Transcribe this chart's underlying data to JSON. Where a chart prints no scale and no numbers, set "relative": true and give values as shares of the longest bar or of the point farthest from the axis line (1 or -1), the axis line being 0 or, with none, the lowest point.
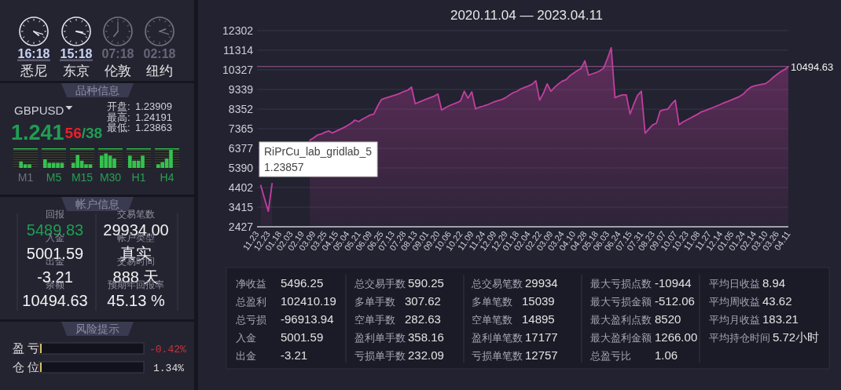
{
  "chart_data": [
    {
      "type": "other",
      "annotations": [
        "16:18",
        "悉尼",
        "15:18",
        "东京",
        "07:18",
        "伦敦",
        "02:18",
        "纽约"
      ]
    },
    {
      "type": "other",
      "title": "品种信息",
      "annotations": [
        "GBPUSD",
        "1.241",
        "56",
        "/38",
        "开盘:",
        "1.23909",
        "最高:",
        "1.24191",
        "最低:",
        "1.23863"
      ]
    },
    {
      "type": "bar",
      "relative": true,
      "categories": [
        "M1",
        "M5",
        "M15",
        "M30",
        "H1",
        "H4"
      ],
      "series": [
        {
          "color": "#34c34f",
          "values": [
            0,
            0.48,
            0.28,
            0.68,
            0.68,
            0.2
          ]
        },
        {
          "color": "#34c34f",
          "values": [
            0.36,
            0.28,
            0.72,
            0.8,
            0.4,
            0.32
          ]
        },
        {
          "color": "#34c34f",
          "values": [
            0.2,
            0.28,
            0.4,
            0.68,
            0.4,
            0.52
          ]
        },
        {
          "color": "#34c34f",
          "values": [
            0.2,
            0.28,
            0.2,
            0.52,
            0.68,
            1
          ]
        },
        {
          "color": "#34c34f",
          "values": [
            0,
            0.28,
            0.2,
            0,
            0,
            0
          ]
        }
      ]
    },
    {
      "type": "other",
      "title": "帐户信息",
      "annotations": [
        "回报",
        "5489.83",
        "交易笔数",
        "29934.00",
        "入金",
        "5001.59",
        "帐户类型",
        "真实",
        "出金",
        "-3.21",
        "交易时间",
        "888 天",
        "余额",
        "10494.63",
        "预期年回报率",
        "45.13 %"
      ]
    },
    {
      "type": "other",
      "title": "风险提示",
      "annotations": [
        "盈 亏",
        "-0.42%",
        "仓 位",
        "1.34%"
      ]
    },
    {
      "type": "area",
      "title": "2020.11.04 — 2023.04.11",
      "categories": [
        "11.23",
        null,
        null,
        "12.23",
        null,
        null,
        "01.18",
        null,
        null,
        "02.03",
        null,
        null,
        "02.19",
        null,
        null,
        "03.09",
        null,
        null,
        "03.25",
        null,
        null,
        "04.15",
        null,
        null,
        "05.04",
        null,
        null,
        "05.21",
        null,
        null,
        "06.09",
        null,
        null,
        "06.25",
        null,
        null,
        "07.13",
        null,
        null,
        "07.28",
        null,
        null,
        "08.13",
        null,
        null,
        "09.01",
        null,
        null,
        "09.20",
        null,
        null,
        "10.06",
        null,
        null,
        "10.22",
        null,
        null,
        "11.09",
        null,
        null,
        "11.24",
        null,
        null,
        "12.09",
        null,
        null,
        "12.29",
        null,
        null,
        "01.18",
        null,
        null,
        "02.04",
        null,
        null,
        "02.22",
        null,
        null,
        "03.09",
        null,
        null,
        "03.24",
        null,
        null,
        "04.10",
        null,
        null,
        "04.28",
        null,
        null,
        "05.18",
        null,
        null,
        "06.03",
        null,
        null,
        "06.24",
        null,
        null,
        "07.15",
        null,
        null,
        "07.31",
        null,
        null,
        "08.23",
        null,
        null,
        "09.07",
        null,
        null,
        "10.07",
        null,
        null,
        "10.23",
        null,
        null,
        "11.08",
        null,
        null,
        "11.27",
        null,
        null,
        "12.14",
        null,
        null,
        "01.05",
        null,
        null,
        "01.24",
        null,
        null,
        "02.14",
        null,
        null,
        "03.10",
        null,
        null,
        "03.26",
        null,
        null,
        "04.11"
      ],
      "series": [
        {
          "color": "#c23f9f",
          "values": [
            null,
            4510,
            3840,
            3210,
            4600,
            null,
            null,
            null,
            null,
            null,
            null,
            null,
            null,
            null,
            6780,
            6900,
            7040,
            7090,
            7180,
            7250,
            7150,
            7240,
            7330,
            7420,
            7520,
            7640,
            7800,
            7720,
            7850,
            7950,
            8050,
            8100,
            8500,
            8830,
            8900,
            8960,
            9020,
            9080,
            9150,
            9240,
            9300,
            9460,
            8620,
            8700,
            8780,
            8860,
            8930,
            9000,
            9110,
            8300,
            8420,
            8520,
            8600,
            8670,
            8760,
            9250,
            8900,
            9220,
            8360,
            8450,
            8500,
            8560,
            8640,
            8720,
            8780,
            8830,
            8930,
            9060,
            9180,
            9250,
            9370,
            9440,
            9510,
            9600,
            9780,
            8800,
            9150,
            9620,
            9250,
            9450,
            9620,
            9760,
            9830,
            10030,
            10160,
            10290,
            10400,
            10780,
            10060,
            10130,
            10190,
            10280,
            10420,
            10900,
            11440,
            8930,
            9010,
            9070,
            9070,
            8100,
            8600,
            9050,
            9250,
            7130,
            7350,
            7560,
            7640,
            8260,
            8320,
            8350,
            8600,
            8800,
            7560,
            7700,
            7800,
            7900,
            8000,
            8100,
            8220,
            8280,
            8360,
            8430,
            8510,
            8590,
            8670,
            8740,
            8820,
            8900,
            8980,
            9100,
            9300,
            9450,
            9520,
            9560,
            9600,
            9640,
            9780,
            9950,
            10100,
            10240,
            10340,
            10490
          ]
        }
      ],
      "ylim": [
        2427,
        12302
      ],
      "yticks": [
        2427,
        3415,
        4402,
        5390,
        6377,
        7365,
        8352,
        9339,
        10327,
        11314,
        12302
      ],
      "grid": "y",
      "ref_lines": [
        {
          "axis": "y",
          "value": 10494.63,
          "label": "10494.63",
          "color": "#9c5a90"
        }
      ],
      "annotations": [
        "RiPrCu_lab_gridlab_5",
        "1.23857"
      ]
    },
    {
      "type": "other",
      "annotations": [
        "净收益",
        "5496.25",
        "总盈利",
        "102410.19",
        "总亏损",
        "-96913.94",
        "入金",
        "5001.59",
        "出金",
        "-3.21"
      ]
    },
    {
      "type": "other",
      "annotations": [
        "总交易手数",
        "590.25",
        "多单手数",
        "307.62",
        "空单手数",
        "282.63",
        "盈利单手数",
        "358.16",
        "亏损单手数",
        "232.09"
      ]
    },
    {
      "type": "other",
      "annotations": [
        "总交易笔数",
        "29934",
        "多单笔数",
        "15039",
        "空单笔数",
        "14895",
        "盈利单笔数",
        "17177",
        "亏损单笔数",
        "12757"
      ]
    },
    {
      "type": "other",
      "annotations": [
        "最大亏损点数",
        "-10944",
        "最大亏损金额",
        "-512.06",
        "最大盈利点数",
        "8520",
        "最大盈利金额",
        "1266.00",
        "总盈亏比",
        "1.06"
      ]
    },
    {
      "type": "other",
      "annotations": [
        "平均日收益",
        "8.94",
        "平均周收益",
        "43.62",
        "平均月收益",
        "183.21",
        "平均持仓时间",
        "5.72小时"
      ]
    }
  ]
}
